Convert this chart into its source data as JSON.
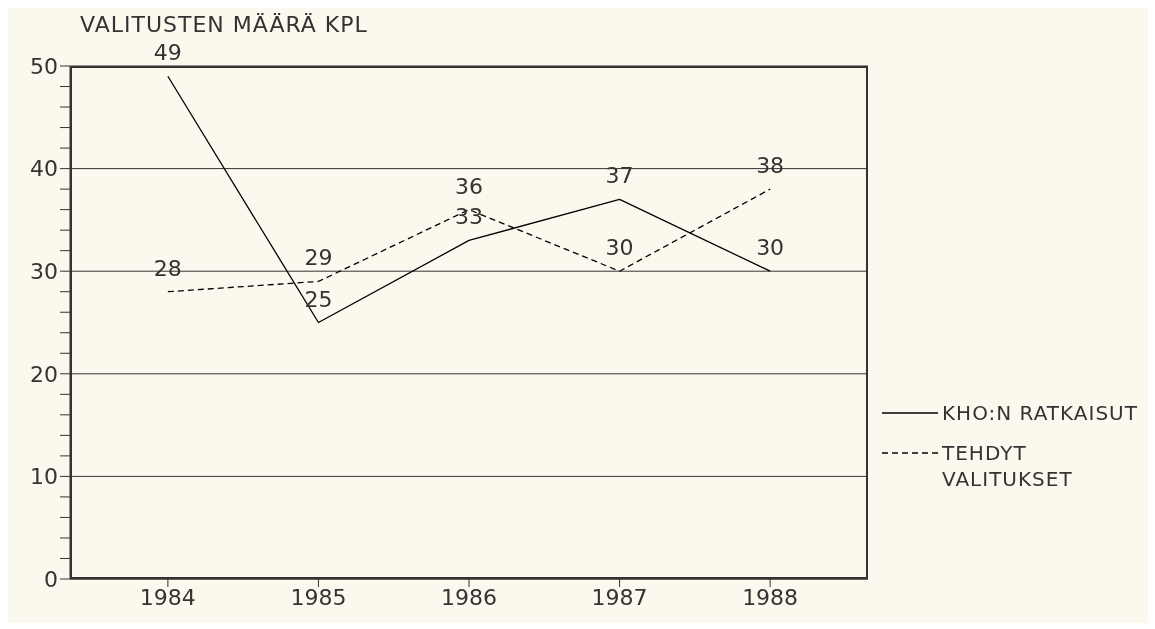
{
  "chart_data": {
    "type": "line",
    "title": "VALITUSTEN MÄÄRÄ KPL",
    "categories": [
      "1984",
      "1985",
      "1986",
      "1987",
      "1988"
    ],
    "series": [
      {
        "name": "KHO:N RATKAISUT",
        "color": "#000000",
        "line_style": "solid",
        "values": [
          49,
          25,
          33,
          37,
          30
        ]
      },
      {
        "name": "TEHDYT VALITUKSET",
        "color": "#000000",
        "line_style": "dashed",
        "values": [
          28,
          29,
          36,
          30,
          38
        ]
      }
    ],
    "ylim": [
      0,
      50
    ],
    "yticks": [
      0,
      {
        "value": 2,
        "label": null
      },
      {
        "value": 4,
        "label": null
      },
      {
        "value": 6,
        "label": null
      },
      {
        "value": 8,
        "label": null
      },
      10,
      {
        "value": 12,
        "label": null
      },
      {
        "value": 14,
        "label": null
      },
      {
        "value": 16,
        "label": null
      },
      {
        "value": 18,
        "label": null
      },
      20,
      {
        "value": 22,
        "label": null
      },
      {
        "value": 24,
        "label": null
      },
      {
        "value": 26,
        "label": null
      },
      {
        "value": 28,
        "label": null
      },
      30,
      {
        "value": 32,
        "label": null
      },
      {
        "value": 34,
        "label": null
      },
      {
        "value": 36,
        "label": null
      },
      {
        "value": 38,
        "label": null
      },
      40,
      {
        "value": 42,
        "label": null
      },
      {
        "value": 44,
        "label": null
      },
      {
        "value": 46,
        "label": null
      },
      {
        "value": 48,
        "label": null
      },
      50
    ],
    "grid": "y",
    "legend": "right",
    "marker": "none",
    "data_labels": true
  }
}
